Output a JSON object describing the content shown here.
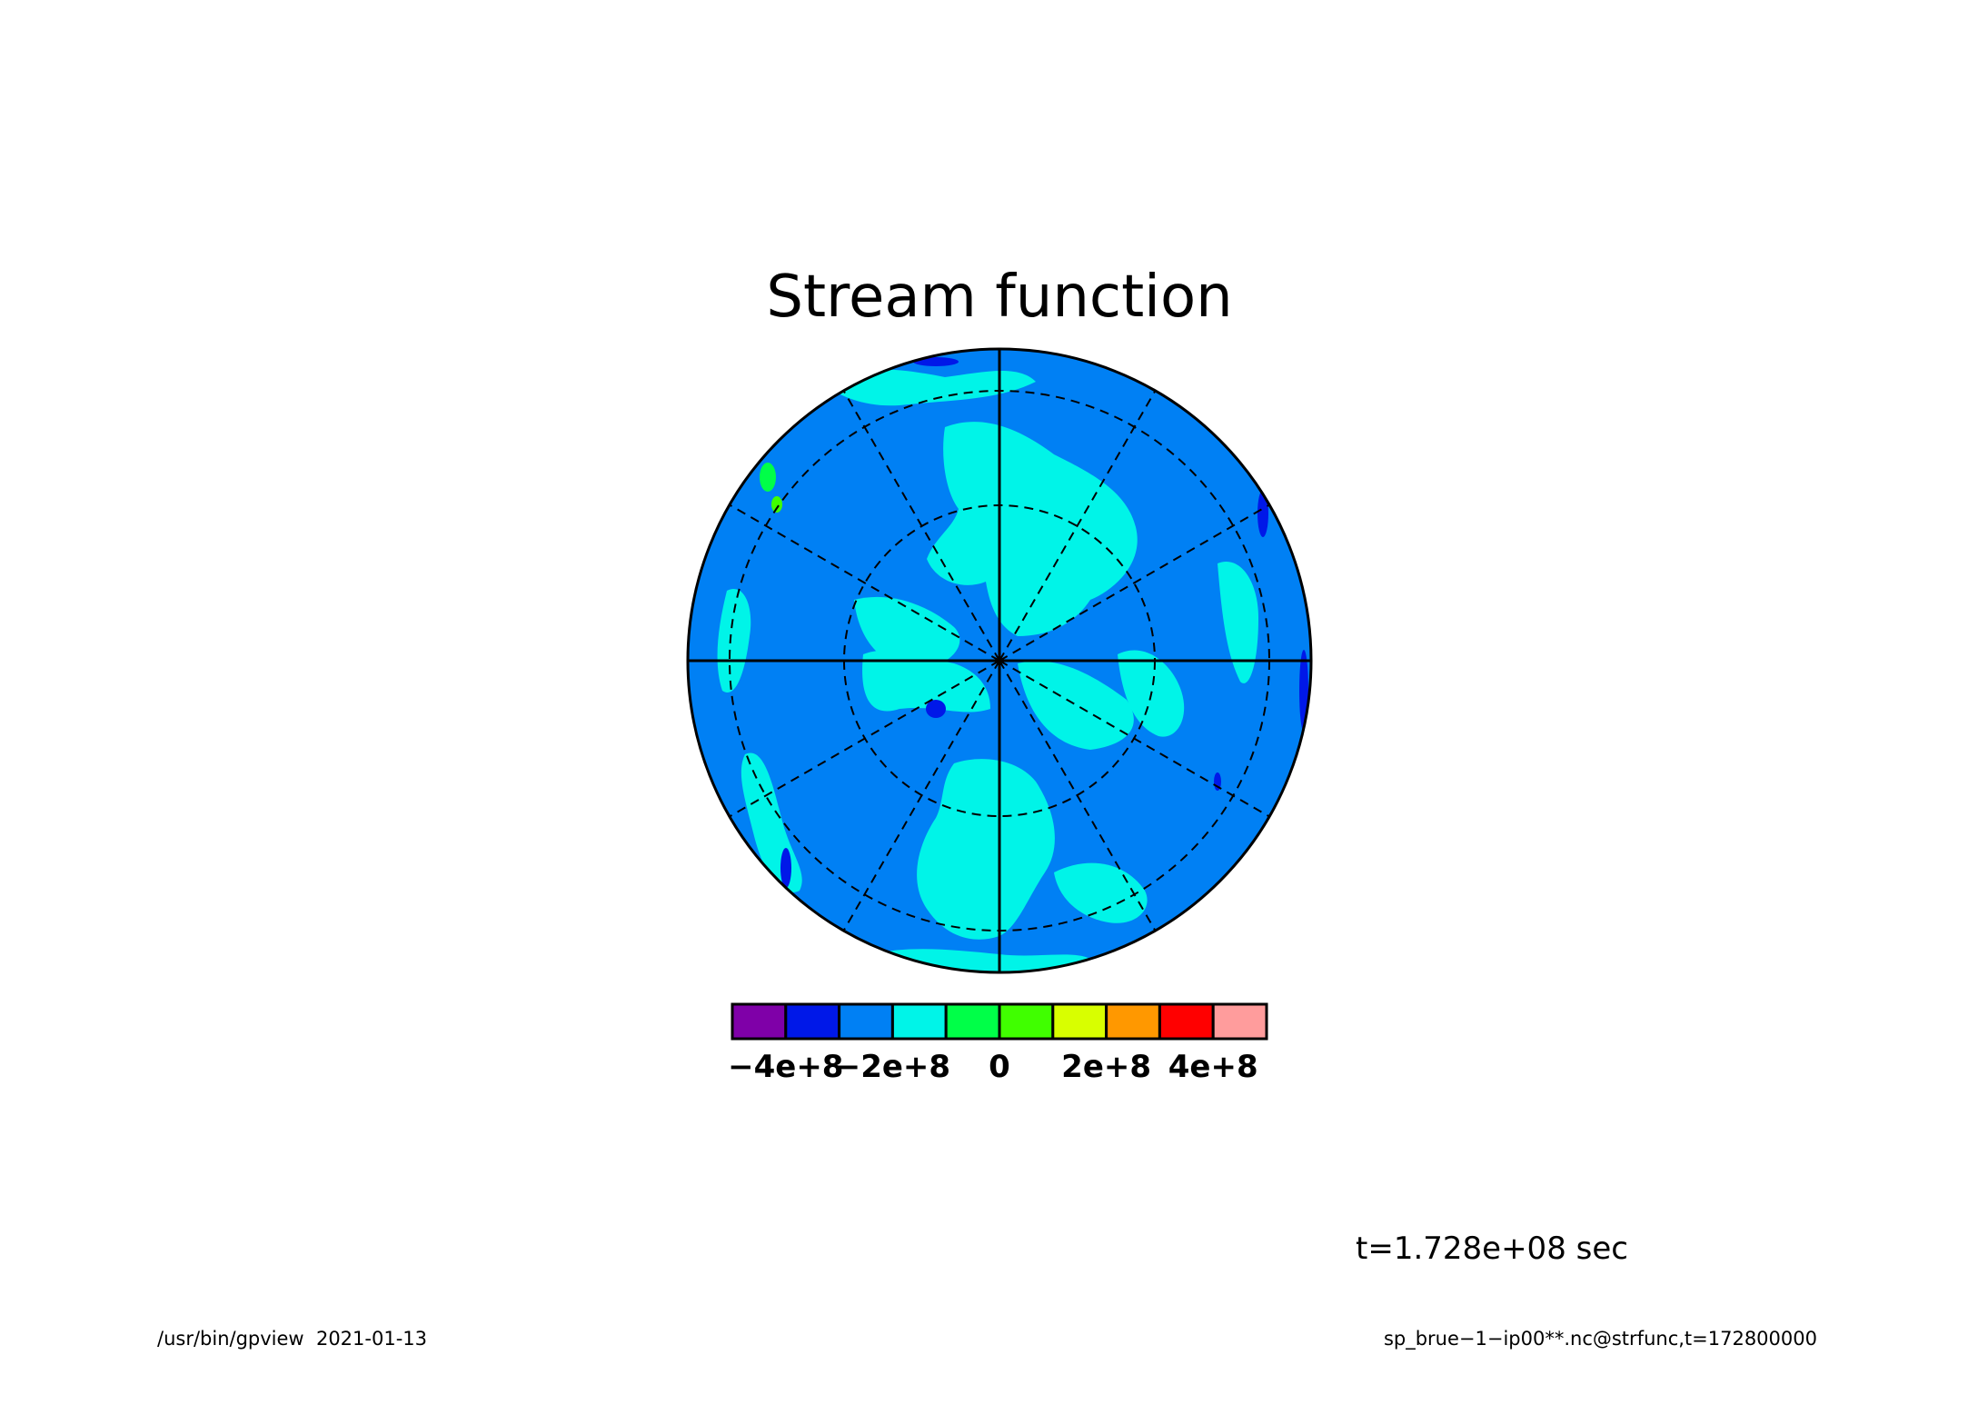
{
  "chart_data": {
    "type": "heatmap",
    "title": "Stream function",
    "projection": "polar stereographic",
    "colorbar": {
      "colors": [
        "#7f00a8",
        "#0018e8",
        "#0080f4",
        "#00f4e8",
        "#00ff48",
        "#40ff00",
        "#d8ff00",
        "#ff9800",
        "#ff0000",
        "#ff9c9c"
      ],
      "ticks": [
        {
          "label": "−4e+8",
          "value": -400000000
        },
        {
          "label": "−2e+8",
          "value": -200000000
        },
        {
          "label": "0",
          "value": 0
        },
        {
          "label": "2e+8",
          "value": 200000000
        },
        {
          "label": "4e+8",
          "value": 400000000
        }
      ],
      "range": [
        -500000000,
        500000000
      ]
    },
    "grid": true,
    "legend": "colorbar below the map"
  },
  "time_label": "t=1.728e+08 sec",
  "footer": {
    "left": "/usr/bin/gpview  2021-01-13",
    "right": "sp_brue−1−ip00**.nc@strfunc,t=172800000"
  }
}
